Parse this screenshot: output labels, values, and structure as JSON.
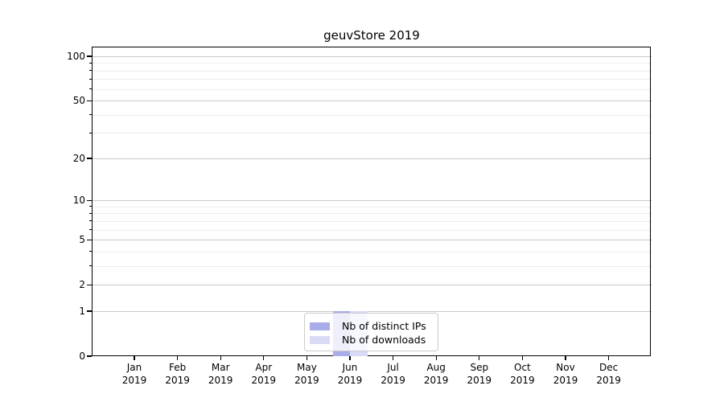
{
  "chart_data": {
    "type": "bar",
    "title": "geuvStore 2019",
    "categories": [
      "Jan",
      "Feb",
      "Mar",
      "Apr",
      "May",
      "Jun",
      "Jul",
      "Aug",
      "Sep",
      "Oct",
      "Nov",
      "Dec"
    ],
    "year_label": "2019",
    "series": [
      {
        "name": "Nb of distinct IPs",
        "color": "#a8adea",
        "values": [
          0,
          0,
          0,
          0,
          0,
          1,
          0,
          0,
          0,
          0,
          0,
          0
        ]
      },
      {
        "name": "Nb of downloads",
        "color": "#d8daf6",
        "values": [
          0,
          0,
          0,
          0,
          0,
          1,
          0,
          0,
          0,
          0,
          0,
          0
        ]
      }
    ],
    "yscale": "log1p",
    "ylim": [
      0,
      116
    ],
    "yticks_major": [
      0,
      1,
      2,
      5,
      10,
      20,
      50,
      100
    ],
    "yticks_minor": [
      3,
      4,
      6,
      7,
      8,
      9,
      30,
      40,
      60,
      70,
      80,
      90
    ],
    "grid": true,
    "legend_position": "inside lower center"
  }
}
